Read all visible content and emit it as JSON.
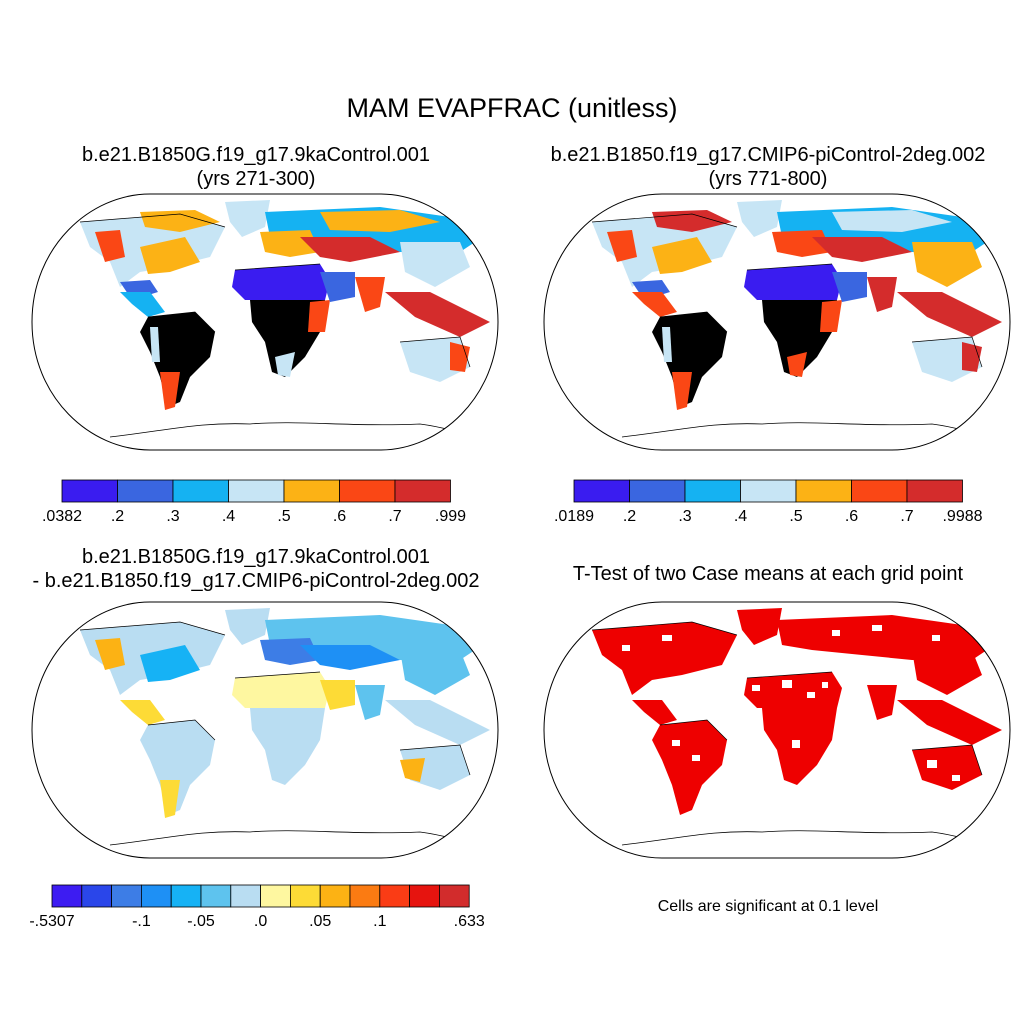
{
  "figure": {
    "title": "MAM EVAPFRAC (unitless)",
    "panels": [
      {
        "title_line1": "b.e21.B1850G.f19_g17.9kaControl.001",
        "title_line2": "(yrs 271-300)",
        "colorbar": {
          "labels": [
            ".0382",
            ".2",
            ".3",
            ".4",
            ".5",
            ".6",
            ".7",
            ".999"
          ],
          "colors": [
            "#3a1cf0",
            "#3a66e0",
            "#15b2f2",
            "#c7e5f5",
            "#fcb215",
            "#fa4715",
            "#d42c2c"
          ]
        }
      },
      {
        "title_line1": "b.e21.B1850.f19_g17.CMIP6-piControl-2deg.002",
        "title_line2": "(yrs 771-800)",
        "colorbar": {
          "labels": [
            ".0189",
            ".2",
            ".3",
            ".4",
            ".5",
            ".6",
            ".7",
            ".9988"
          ],
          "colors": [
            "#3a1cf0",
            "#3a66e0",
            "#15b2f2",
            "#c7e5f5",
            "#fcb215",
            "#fa4715",
            "#d42c2c"
          ]
        }
      },
      {
        "title_line1": "b.e21.B1850G.f19_g17.9kaControl.001",
        "title_line2": "- b.e21.B1850.f19_g17.CMIP6-piControl-2deg.002",
        "colorbar": {
          "labels": [
            "-.5307",
            "-.1",
            "-.05",
            ".0",
            ".05",
            ".1",
            ".633"
          ],
          "colors": [
            "#3d1cf2",
            "#2a46ea",
            "#3d7de6",
            "#1e90f5",
            "#16b2f5",
            "#5ec3ee",
            "#b9ddf2",
            "#fef7a0",
            "#fddb36",
            "#fcb214",
            "#fb7b12",
            "#fa3c15",
            "#e6140f",
            "#d22c2c"
          ]
        }
      },
      {
        "title_line1": "T-Test of two Case means at each grid point",
        "note": "Cells are significant at 0.1 level",
        "significance_color": "#ee0000"
      }
    ]
  }
}
